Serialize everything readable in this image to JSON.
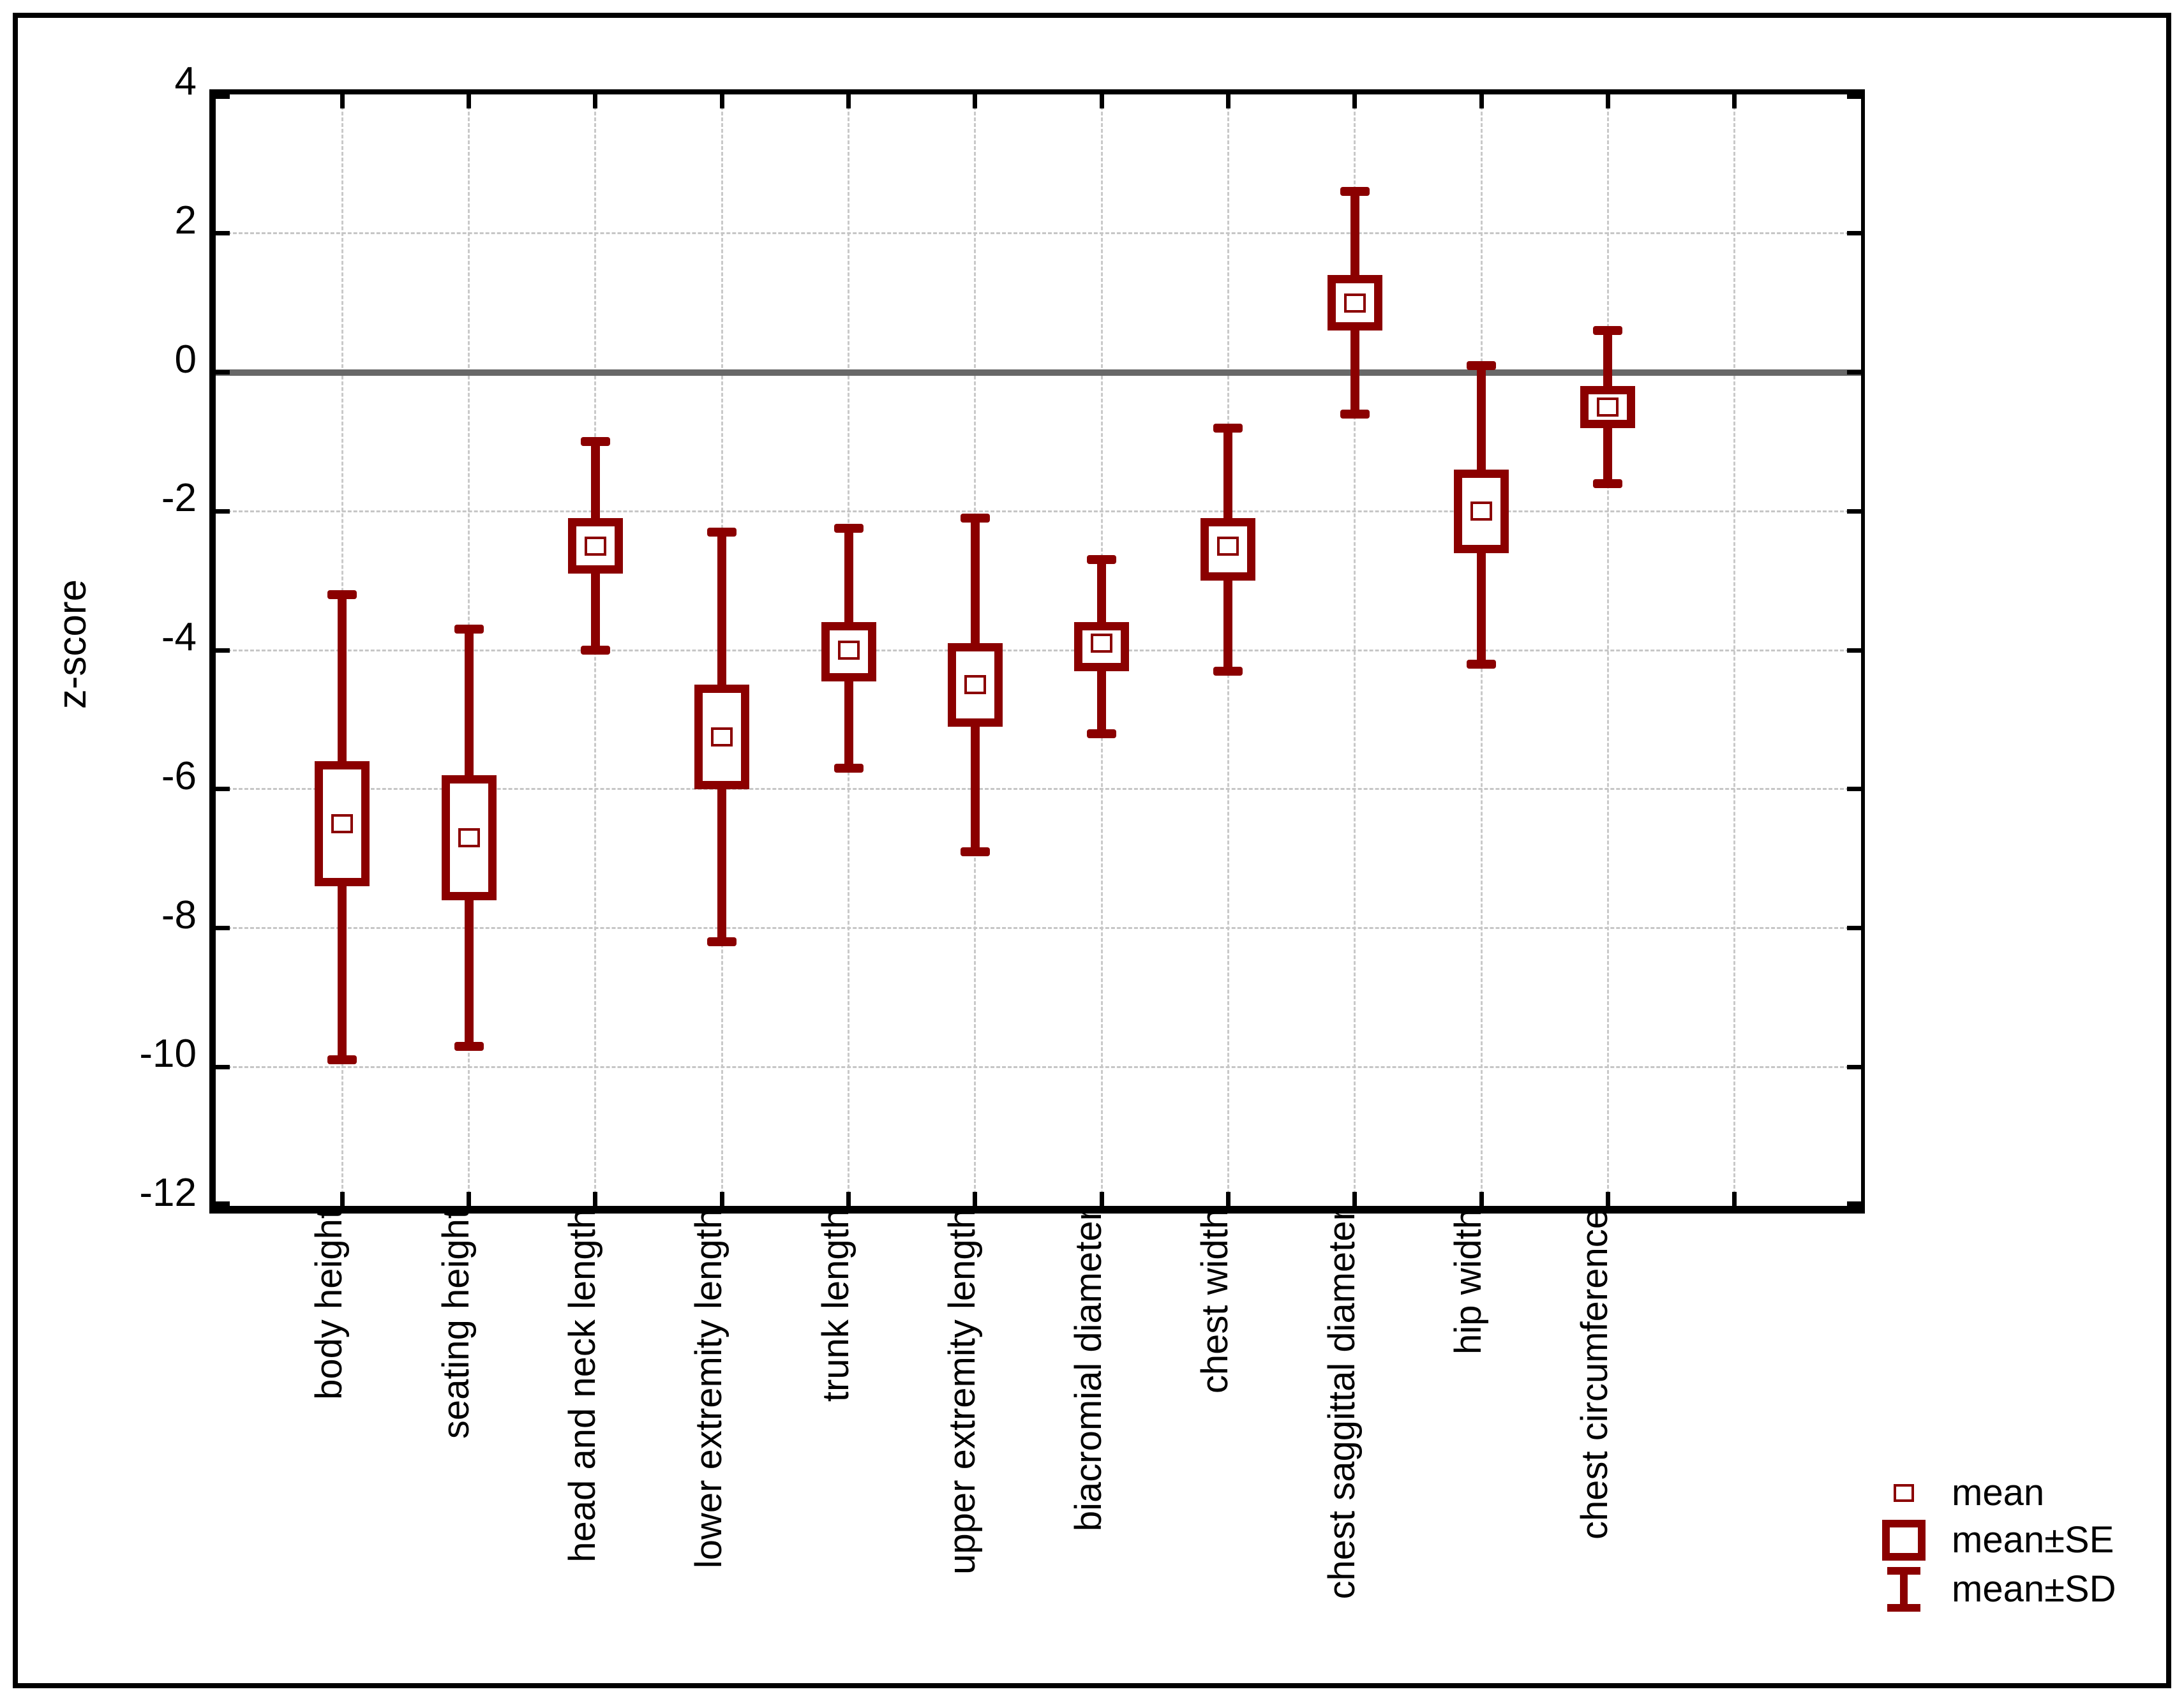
{
  "colors": {
    "series": "#8B0000",
    "zero_line": "#686868",
    "grid": "#c6c6c6",
    "axis": "#000000",
    "background": "#ffffff",
    "text": "#000000"
  },
  "axes": {
    "y_title": "z-score",
    "y_tick_labels": [
      "4",
      "2",
      "0",
      "-2",
      "-4",
      "-6",
      "-8",
      "-10",
      "-12"
    ]
  },
  "legend": {
    "items": [
      {
        "label": "mean",
        "marker": "small-open-square-icon"
      },
      {
        "label": "mean±SE",
        "marker": "open-box-icon"
      },
      {
        "label": "mean±SD",
        "marker": "whisker-icon"
      }
    ]
  },
  "chart_data": {
    "type": "box-whisker",
    "subtype": "mean / mean±SE / mean±SD summary plot",
    "title": "",
    "xlabel": "",
    "ylabel": "z-score",
    "ylim": [
      -12,
      4
    ],
    "y_ticks": [
      4,
      2,
      0,
      -2,
      -4,
      -6,
      -8,
      -10,
      -12
    ],
    "grid": "dashed gridlines at 2-unit y intervals and at each category; solid gray reference line at y=0",
    "legend_position": "bottom-right",
    "reference_line_y": 0,
    "n_x_slots": 13,
    "extra_unlabeled_x_gridline_slot": 12,
    "categories": [
      "body height",
      "seating height",
      "head and neck length",
      "lower extremity length",
      "trunk length",
      "upper extremity length",
      "biacromial diameter",
      "chest width",
      "chest saggittal diameter",
      "hip width",
      "chest circumference"
    ],
    "series": [
      {
        "name": "mean",
        "values": [
          -6.5,
          -6.7,
          -2.5,
          -5.25,
          -4.0,
          -4.5,
          -3.9,
          -2.5,
          1.0,
          -2.0,
          -0.5
        ]
      },
      {
        "name": "mean+SE",
        "values": [
          -5.6,
          -5.8,
          -2.1,
          -4.5,
          -3.6,
          -3.9,
          -3.6,
          -2.1,
          1.4,
          -1.4,
          -0.2
        ]
      },
      {
        "name": "mean-SE",
        "values": [
          -7.4,
          -7.6,
          -2.9,
          -6.0,
          -4.45,
          -5.1,
          -4.3,
          -3.0,
          0.6,
          -2.6,
          -0.8
        ]
      },
      {
        "name": "mean+SD",
        "values": [
          -3.2,
          -3.7,
          -1.0,
          -2.3,
          -2.25,
          -2.1,
          -2.7,
          -0.8,
          2.6,
          0.1,
          0.6
        ]
      },
      {
        "name": "mean-SD",
        "values": [
          -9.9,
          -9.7,
          -4.0,
          -8.2,
          -5.7,
          -6.9,
          -5.2,
          -4.3,
          -0.6,
          -4.2,
          -1.6
        ]
      }
    ]
  }
}
